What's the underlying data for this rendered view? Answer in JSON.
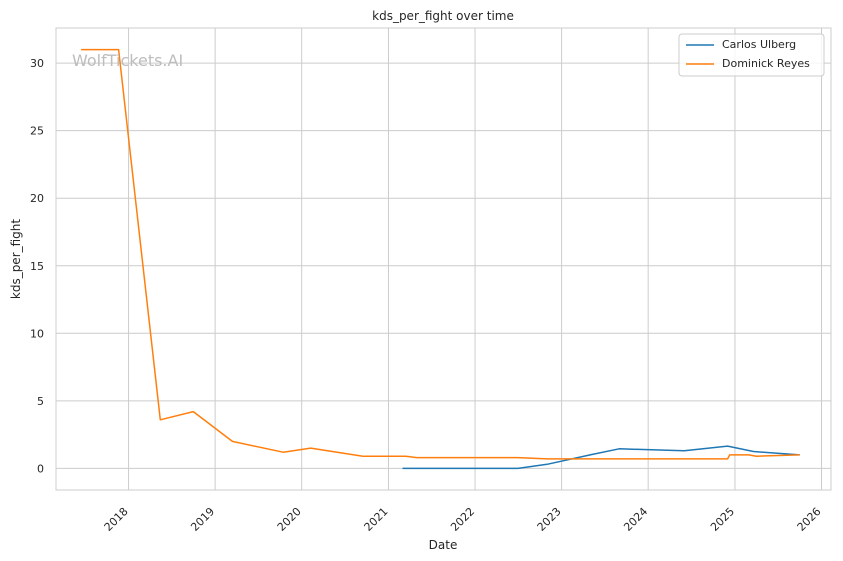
{
  "watermark": "WolfTickets.AI",
  "chart_data": {
    "type": "line",
    "title": "kds_per_fight over time",
    "xlabel": "Date",
    "ylabel": "kds_per_fight",
    "x_ticks": [
      "2018",
      "2019",
      "2020",
      "2021",
      "2022",
      "2023",
      "2024",
      "2025",
      "2026"
    ],
    "y_ticks": [
      "0",
      "5",
      "10",
      "15",
      "20",
      "25",
      "30"
    ],
    "xlim": [
      "2017-03-01",
      "2026-02-10"
    ],
    "ylim": [
      -1.6,
      32.6
    ],
    "grid": true,
    "legend_position": "top-right",
    "series": [
      {
        "name": "Carlos Ulberg",
        "color": "#1f77b4",
        "points": [
          {
            "x": "2021-03-01",
            "y": 0.0
          },
          {
            "x": "2022-07-01",
            "y": 0.0
          },
          {
            "x": "2022-11-01",
            "y": 0.3
          },
          {
            "x": "2023-05-01",
            "y": 1.0
          },
          {
            "x": "2023-09-01",
            "y": 1.45
          },
          {
            "x": "2024-06-01",
            "y": 1.3
          },
          {
            "x": "2024-12-01",
            "y": 1.65
          },
          {
            "x": "2025-03-20",
            "y": 1.25
          },
          {
            "x": "2025-10-01",
            "y": 1.0
          }
        ]
      },
      {
        "name": "Dominick Reyes",
        "color": "#ff7f0e",
        "points": [
          {
            "x": "2017-06-15",
            "y": 31.0
          },
          {
            "x": "2017-11-20",
            "y": 31.0
          },
          {
            "x": "2018-05-15",
            "y": 3.6
          },
          {
            "x": "2018-10-01",
            "y": 4.2
          },
          {
            "x": "2019-03-15",
            "y": 2.0
          },
          {
            "x": "2019-10-15",
            "y": 1.2
          },
          {
            "x": "2020-02-08",
            "y": 1.5
          },
          {
            "x": "2020-09-15",
            "y": 0.9
          },
          {
            "x": "2021-03-15",
            "y": 0.9
          },
          {
            "x": "2021-05-01",
            "y": 0.8
          },
          {
            "x": "2022-07-01",
            "y": 0.8
          },
          {
            "x": "2022-11-01",
            "y": 0.7
          },
          {
            "x": "2024-12-01",
            "y": 0.7
          },
          {
            "x": "2024-12-10",
            "y": 1.0
          },
          {
            "x": "2025-03-01",
            "y": 1.0
          },
          {
            "x": "2025-04-01",
            "y": 0.9
          },
          {
            "x": "2025-10-01",
            "y": 1.0
          }
        ]
      }
    ]
  }
}
